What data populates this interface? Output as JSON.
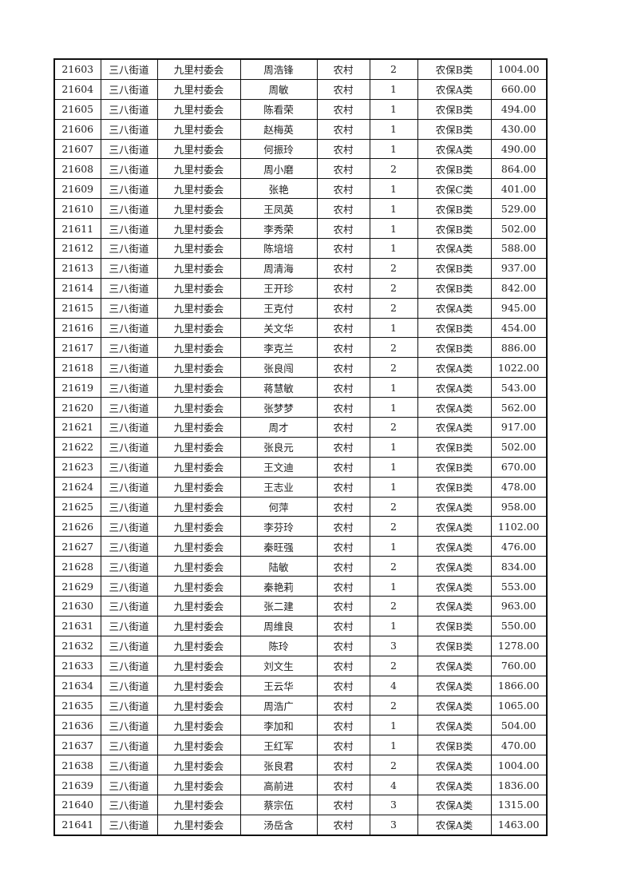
{
  "rows": [
    [
      "21603",
      "三八街道",
      "九里村委会",
      "周浩锋",
      "农村",
      "2",
      "农保B类",
      "1004.00"
    ],
    [
      "21604",
      "三八街道",
      "九里村委会",
      "周敏",
      "农村",
      "1",
      "农保A类",
      "660.00"
    ],
    [
      "21605",
      "三八街道",
      "九里村委会",
      "陈看荣",
      "农村",
      "1",
      "农保B类",
      "494.00"
    ],
    [
      "21606",
      "三八街道",
      "九里村委会",
      "赵梅英",
      "农村",
      "1",
      "农保B类",
      "430.00"
    ],
    [
      "21607",
      "三八街道",
      "九里村委会",
      "何振玲",
      "农村",
      "1",
      "农保A类",
      "490.00"
    ],
    [
      "21608",
      "三八街道",
      "九里村委会",
      "周小磨",
      "农村",
      "2",
      "农保B类",
      "864.00"
    ],
    [
      "21609",
      "三八街道",
      "九里村委会",
      "张艳",
      "农村",
      "1",
      "农保C类",
      "401.00"
    ],
    [
      "21610",
      "三八街道",
      "九里村委会",
      "王凤英",
      "农村",
      "1",
      "农保B类",
      "529.00"
    ],
    [
      "21611",
      "三八街道",
      "九里村委会",
      "李秀荣",
      "农村",
      "1",
      "农保B类",
      "502.00"
    ],
    [
      "21612",
      "三八街道",
      "九里村委会",
      "陈培培",
      "农村",
      "1",
      "农保A类",
      "588.00"
    ],
    [
      "21613",
      "三八街道",
      "九里村委会",
      "周清海",
      "农村",
      "2",
      "农保B类",
      "937.00"
    ],
    [
      "21614",
      "三八街道",
      "九里村委会",
      "王开珍",
      "农村",
      "2",
      "农保B类",
      "842.00"
    ],
    [
      "21615",
      "三八街道",
      "九里村委会",
      "王克付",
      "农村",
      "2",
      "农保A类",
      "945.00"
    ],
    [
      "21616",
      "三八街道",
      "九里村委会",
      "关文华",
      "农村",
      "1",
      "农保B类",
      "454.00"
    ],
    [
      "21617",
      "三八街道",
      "九里村委会",
      "李克兰",
      "农村",
      "2",
      "农保B类",
      "886.00"
    ],
    [
      "21618",
      "三八街道",
      "九里村委会",
      "张良闯",
      "农村",
      "2",
      "农保A类",
      "1022.00"
    ],
    [
      "21619",
      "三八街道",
      "九里村委会",
      "蒋慧敏",
      "农村",
      "1",
      "农保A类",
      "543.00"
    ],
    [
      "21620",
      "三八街道",
      "九里村委会",
      "张梦梦",
      "农村",
      "1",
      "农保A类",
      "562.00"
    ],
    [
      "21621",
      "三八街道",
      "九里村委会",
      "周才",
      "农村",
      "2",
      "农保A类",
      "917.00"
    ],
    [
      "21622",
      "三八街道",
      "九里村委会",
      "张良元",
      "农村",
      "1",
      "农保B类",
      "502.00"
    ],
    [
      "21623",
      "三八街道",
      "九里村委会",
      "王文迪",
      "农村",
      "1",
      "农保B类",
      "670.00"
    ],
    [
      "21624",
      "三八街道",
      "九里村委会",
      "王志业",
      "农村",
      "1",
      "农保B类",
      "478.00"
    ],
    [
      "21625",
      "三八街道",
      "九里村委会",
      "何萍",
      "农村",
      "2",
      "农保A类",
      "958.00"
    ],
    [
      "21626",
      "三八街道",
      "九里村委会",
      "李芬玲",
      "农村",
      "2",
      "农保A类",
      "1102.00"
    ],
    [
      "21627",
      "三八街道",
      "九里村委会",
      "秦旺强",
      "农村",
      "1",
      "农保A类",
      "476.00"
    ],
    [
      "21628",
      "三八街道",
      "九里村委会",
      "陆敏",
      "农村",
      "2",
      "农保A类",
      "834.00"
    ],
    [
      "21629",
      "三八街道",
      "九里村委会",
      "秦艳莉",
      "农村",
      "1",
      "农保A类",
      "553.00"
    ],
    [
      "21630",
      "三八街道",
      "九里村委会",
      "张二建",
      "农村",
      "2",
      "农保A类",
      "963.00"
    ],
    [
      "21631",
      "三八街道",
      "九里村委会",
      "周维良",
      "农村",
      "1",
      "农保B类",
      "550.00"
    ],
    [
      "21632",
      "三八街道",
      "九里村委会",
      "陈玲",
      "农村",
      "3",
      "农保B类",
      "1278.00"
    ],
    [
      "21633",
      "三八街道",
      "九里村委会",
      "刘文生",
      "农村",
      "2",
      "农保A类",
      "760.00"
    ],
    [
      "21634",
      "三八街道",
      "九里村委会",
      "王云华",
      "农村",
      "4",
      "农保A类",
      "1866.00"
    ],
    [
      "21635",
      "三八街道",
      "九里村委会",
      "周浩广",
      "农村",
      "2",
      "农保A类",
      "1065.00"
    ],
    [
      "21636",
      "三八街道",
      "九里村委会",
      "李加和",
      "农村",
      "1",
      "农保A类",
      "504.00"
    ],
    [
      "21637",
      "三八街道",
      "九里村委会",
      "王红军",
      "农村",
      "1",
      "农保B类",
      "470.00"
    ],
    [
      "21638",
      "三八街道",
      "九里村委会",
      "张良君",
      "农村",
      "2",
      "农保A类",
      "1004.00"
    ],
    [
      "21639",
      "三八街道",
      "九里村委会",
      "高前进",
      "农村",
      "4",
      "农保A类",
      "1836.00"
    ],
    [
      "21640",
      "三八街道",
      "九里村委会",
      "蔡宗伍",
      "农村",
      "3",
      "农保A类",
      "1315.00"
    ],
    [
      "21641",
      "三八街道",
      "九里村委会",
      "汤岳含",
      "农村",
      "3",
      "农保A类",
      "1463.00"
    ]
  ]
}
